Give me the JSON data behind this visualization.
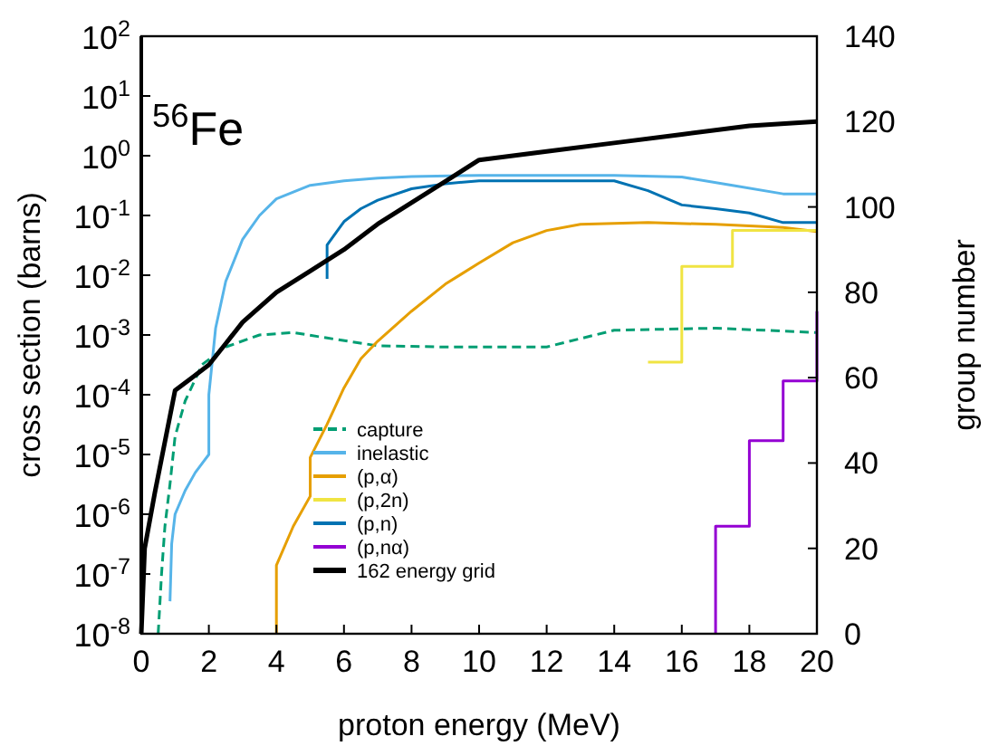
{
  "chart_data": {
    "type": "line",
    "xlabel": "proton energy (MeV)",
    "ylabel": "cross section (barns)",
    "y2label": "group number",
    "annotations": [
      "$^{56}$Fe"
    ],
    "log": "y",
    "legend": "bottom left",
    "grid": false,
    "xlim": [
      0,
      20
    ],
    "xticks": [
      0,
      2,
      4,
      6,
      8,
      10,
      12,
      14,
      16,
      18,
      20
    ],
    "ylim": [
      1e-08,
      100
    ],
    "yticks": [
      {
        "value": 1e-08,
        "label": "10$^{-8}$"
      },
      {
        "value": 1e-07,
        "label": "10$^{-7}$"
      },
      {
        "value": 1e-06,
        "label": "10$^{-6}$"
      },
      {
        "value": 1e-05,
        "label": "10$^{-5}$"
      },
      {
        "value": 0.0001,
        "label": "10$^{-4}$"
      },
      {
        "value": 0.001,
        "label": "10$^{-3}$"
      },
      {
        "value": 0.01,
        "label": "10$^{-2}$"
      },
      {
        "value": 0.1,
        "label": "10$^{-1}$"
      },
      {
        "value": 1,
        "label": "10$^{0}$"
      },
      {
        "value": 10,
        "label": "10$^{1}$"
      },
      {
        "value": 100,
        "label": "10$^{2}$"
      }
    ],
    "y2lim": [
      0,
      140
    ],
    "y2ticks": [
      0,
      20,
      40,
      60,
      80,
      100,
      120,
      140
    ],
    "series": [
      {
        "name": "capture",
        "color": "#009e73",
        "line_style": "dashed",
        "x": [
          0.5,
          0.6,
          0.7,
          0.85,
          1,
          1.3,
          1.8,
          2.5,
          3.5,
          4.5,
          5.5,
          7,
          9,
          12,
          13,
          14,
          17,
          20
        ],
        "values": [
          1e-08,
          1e-07,
          6.3e-07,
          3.2e-06,
          2e-05,
          7.9e-05,
          0.00032,
          0.00063,
          0.001,
          0.0011,
          0.00089,
          0.00066,
          0.00063,
          0.00063,
          0.00087,
          0.0012,
          0.0013,
          0.0011
        ]
      },
      {
        "name": "inelastic",
        "color": "#56b4e9",
        "line_style": "solid",
        "x": [
          0.85,
          0.9,
          1,
          1.3,
          1.6,
          2,
          2,
          2.2,
          2.5,
          3,
          3.5,
          4,
          5,
          6,
          7,
          8,
          10,
          14,
          16,
          17.5,
          19,
          20
        ],
        "values": [
          3.5e-08,
          3.2e-07,
          1e-06,
          2.5e-06,
          5e-06,
          1e-05,
          0.0001,
          0.0013,
          0.0079,
          0.04,
          0.1,
          0.19,
          0.32,
          0.38,
          0.42,
          0.45,
          0.47,
          0.47,
          0.44,
          0.32,
          0.23,
          0.23
        ]
      },
      {
        "name": "(p,α)",
        "color": "#e69f00",
        "line_style": "solid",
        "x": [
          4,
          4,
          4.5,
          5,
          5,
          5.5,
          6,
          6.5,
          7,
          8,
          9,
          10,
          11,
          12,
          13,
          15,
          17,
          19,
          20
        ],
        "values": [
          1e-08,
          1.4e-07,
          6.3e-07,
          2e-06,
          8.9e-06,
          3.2e-05,
          0.00013,
          0.0004,
          0.00079,
          0.0025,
          0.0071,
          0.016,
          0.035,
          0.056,
          0.071,
          0.076,
          0.071,
          0.063,
          0.054
        ]
      },
      {
        "name": "(p,2n)",
        "color": "#f0e442",
        "line_style": "solid",
        "x": [
          15,
          16,
          16,
          17.5,
          17.5,
          20
        ],
        "values": [
          0.00035,
          0.00035,
          0.014,
          0.014,
          0.056,
          0.056
        ]
      },
      {
        "name": "(p,n)",
        "color": "#0072b2",
        "line_style": "solid",
        "x": [
          5.5,
          5.5,
          6,
          6.5,
          7,
          8,
          9,
          10,
          14,
          15,
          16,
          17,
          18,
          19,
          20
        ],
        "values": [
          0.0087,
          0.032,
          0.079,
          0.13,
          0.18,
          0.28,
          0.34,
          0.38,
          0.38,
          0.26,
          0.15,
          0.13,
          0.11,
          0.076,
          0.076
        ]
      },
      {
        "name": "(p,nα)",
        "color": "#9400d3",
        "line_style": "solid",
        "x": [
          17,
          17,
          18,
          18,
          19,
          19,
          20,
          20
        ],
        "values": [
          1e-08,
          6.3e-07,
          6.3e-07,
          1.7e-05,
          1.7e-05,
          0.00017,
          0.00017,
          0.0025
        ]
      },
      {
        "name": "162 energy grid",
        "color": "#000000",
        "line_style": "solid",
        "axis": "y2",
        "x": [
          0,
          0.1,
          0.4,
          1,
          1.5,
          2,
          2.5,
          3,
          4,
          5,
          6,
          7,
          8,
          9,
          10,
          12,
          14,
          16,
          18,
          20
        ],
        "values": [
          0,
          20,
          33,
          57,
          60,
          63,
          68,
          73,
          80,
          85,
          90,
          96,
          101,
          106,
          111,
          113,
          115,
          117,
          119,
          120
        ]
      }
    ]
  }
}
